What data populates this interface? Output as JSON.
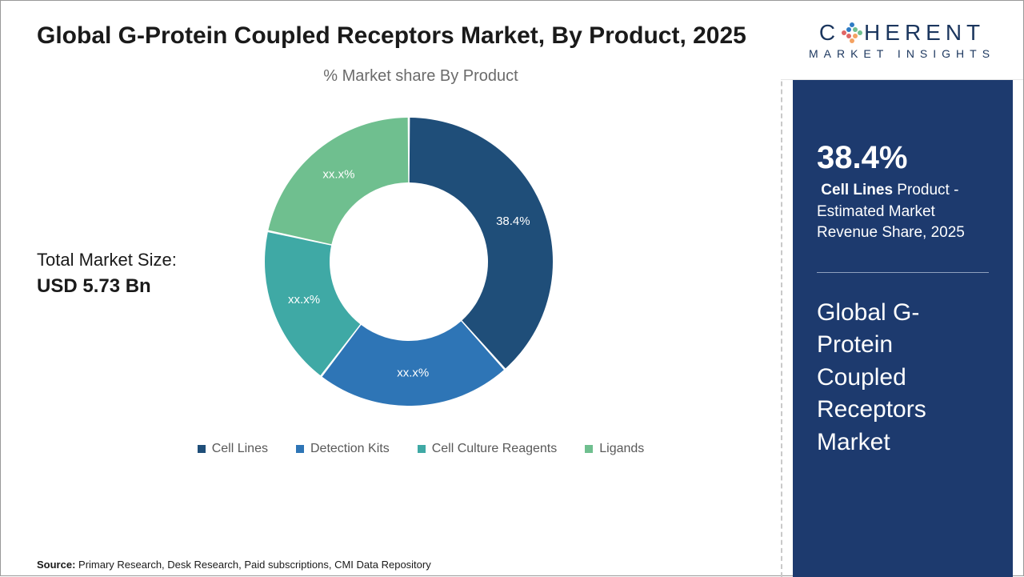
{
  "title": "Global G-Protein Coupled Receptors Market, By Product, 2025",
  "chart_subtitle": "% Market share By Product",
  "market_size": {
    "label": "Total Market Size:",
    "value": "USD 5.73 Bn"
  },
  "chart": {
    "type": "donut",
    "inner_radius_ratio": 0.55,
    "background_color": "#ffffff",
    "slices": [
      {
        "name": "Cell Lines",
        "value": 38.4,
        "label": "38.4%",
        "color": "#1f4e79"
      },
      {
        "name": "Detection Kits",
        "value": 22.0,
        "label": "xx.x%",
        "color": "#2e75b6"
      },
      {
        "name": "Cell Culture Reagents",
        "value": 18.0,
        "label": "xx.x%",
        "color": "#3fa9a5"
      },
      {
        "name": "Ligands",
        "value": 21.6,
        "label": "xx.x%",
        "color": "#6fbf8f"
      }
    ],
    "legend_fontsize": 16,
    "legend_color": "#595959"
  },
  "source": {
    "prefix": "Source:",
    "text": " Primary Research, Desk Research, Paid subscriptions, CMI Data Repository"
  },
  "logo": {
    "main": "COHERENT",
    "sub": "MARKET INSIGHTS",
    "brand_color": "#1b365e",
    "accent_colors": [
      "#2e7bc4",
      "#6fbf8f",
      "#f4a261",
      "#e06666"
    ]
  },
  "right_panel": {
    "bg_color": "#1d3a6e",
    "text_color": "#ffffff",
    "pct": "38.4%",
    "desc_bold": "Cell Lines",
    "desc_rest": " Product - Estimated Market Revenue Share, 2025",
    "panel_title": "Global G-Protein Coupled Receptors Market"
  }
}
